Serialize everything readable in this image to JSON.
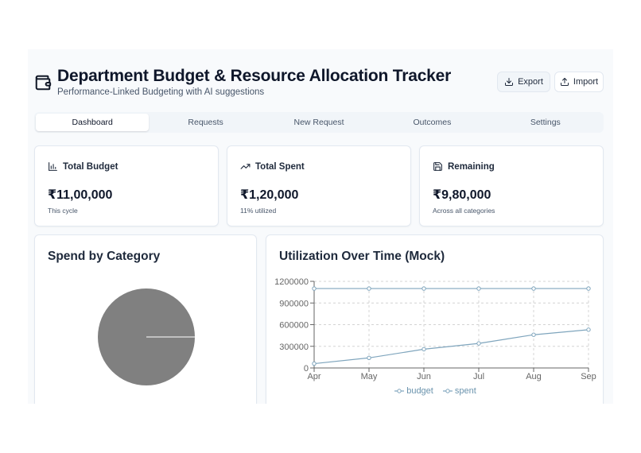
{
  "header": {
    "title": "Department Budget & Resource Allocation Tracker",
    "subtitle": "Performance-Linked Budgeting with AI suggestions",
    "icon": "wallet-icon",
    "export_label": "Export",
    "export_icon": "download-icon",
    "import_label": "Import",
    "import_icon": "upload-icon"
  },
  "tabs": [
    {
      "label": "Dashboard",
      "active": true
    },
    {
      "label": "Requests",
      "active": false
    },
    {
      "label": "New Request",
      "active": false
    },
    {
      "label": "Outcomes",
      "active": false
    },
    {
      "label": "Settings",
      "active": false
    }
  ],
  "stats": [
    {
      "label": "Total Budget",
      "icon": "bar-chart-icon",
      "value": "₹11,00,000",
      "note": "This cycle"
    },
    {
      "label": "Total Spent",
      "icon": "trending-up-icon",
      "value": "₹1,20,000",
      "note": "11% utilized"
    },
    {
      "label": "Remaining",
      "icon": "save-icon",
      "value": "₹9,80,000",
      "note": "Across all categories"
    }
  ],
  "spend_panel": {
    "title": "Spend by Category",
    "pie_color": "#808080"
  },
  "utilization_panel": {
    "title": "Utilization Over Time (Mock)"
  },
  "colors": {
    "line": "#7fa5bd",
    "legend_text": "#6a93ad",
    "accent_bg": "#f1f5f9"
  },
  "chart_data": {
    "type": "line",
    "x": [
      "Apr",
      "May",
      "Jun",
      "Jul",
      "Aug",
      "Sep"
    ],
    "series": [
      {
        "name": "budget",
        "values": [
          1100000,
          1100000,
          1100000,
          1100000,
          1100000,
          1100000
        ]
      },
      {
        "name": "spent",
        "values": [
          60000,
          140000,
          260000,
          340000,
          460000,
          530000
        ]
      }
    ],
    "yticks": [
      0,
      300000,
      600000,
      900000,
      1200000
    ],
    "ylim": [
      0,
      1200000
    ],
    "grid": true,
    "legend_position": "bottom"
  }
}
